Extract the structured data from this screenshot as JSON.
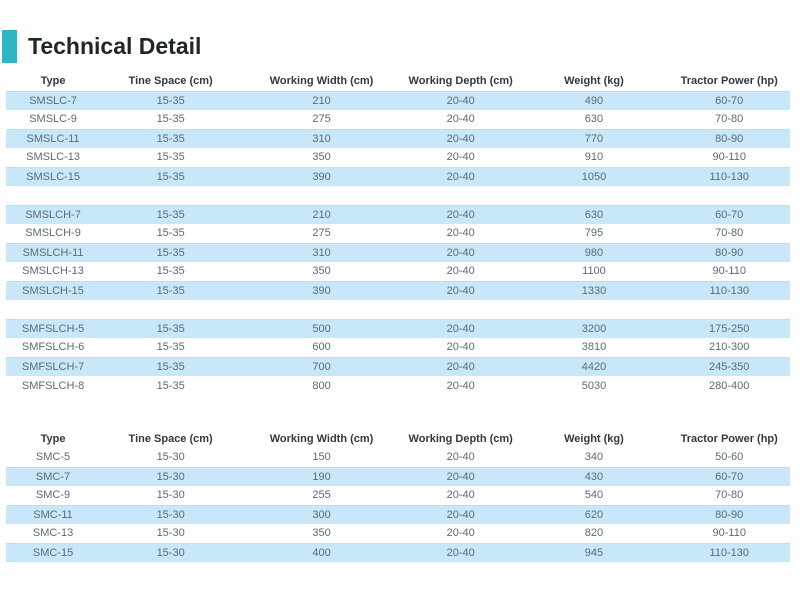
{
  "page": {
    "title": "Technical Detail",
    "accent_color": "#2eb6c5",
    "row_highlight_color": "#c8e7f8"
  },
  "table1": {
    "headers": [
      "Type",
      "Tine Space (cm)",
      "Working Width (cm)",
      "Working Depth (cm)",
      "Weight (kg)",
      "Tractor Power (hp)"
    ],
    "groups": [
      {
        "rows": [
          [
            "SMSLC-7",
            "15-35",
            "210",
            "20-40",
            "490",
            "60-70"
          ],
          [
            "SMSLC-9",
            "15-35",
            "275",
            "20-40",
            "630",
            "70-80"
          ],
          [
            "SMSLC-11",
            "15-35",
            "310",
            "20-40",
            "770",
            "80-90"
          ],
          [
            "SMSLC-13",
            "15-35",
            "350",
            "20-40",
            "910",
            "90-110"
          ],
          [
            "SMSLC-15",
            "15-35",
            "390",
            "20-40",
            "1050",
            "110-130"
          ]
        ]
      },
      {
        "rows": [
          [
            "SMSLCH-7",
            "15-35",
            "210",
            "20-40",
            "630",
            "60-70"
          ],
          [
            "SMSLCH-9",
            "15-35",
            "275",
            "20-40",
            "795",
            "70-80"
          ],
          [
            "SMSLCH-11",
            "15-35",
            "310",
            "20-40",
            "980",
            "80-90"
          ],
          [
            "SMSLCH-13",
            "15-35",
            "350",
            "20-40",
            "1100",
            "90-110"
          ],
          [
            "SMSLCH-15",
            "15-35",
            "390",
            "20-40",
            "1330",
            "110-130"
          ]
        ]
      },
      {
        "rows": [
          [
            "SMFSLCH-5",
            "15-35",
            "500",
            "20-40",
            "3200",
            "175-250"
          ],
          [
            "SMFSLCH-6",
            "15-35",
            "600",
            "20-40",
            "3810",
            "210-300"
          ],
          [
            "SMFSLCH-7",
            "15-35",
            "700",
            "20-40",
            "4420",
            "245-350"
          ],
          [
            "SMFSLCH-8",
            "15-35",
            "800",
            "20-40",
            "5030",
            "280-400"
          ]
        ]
      }
    ]
  },
  "table2": {
    "headers": [
      "Type",
      "Tine Space (cm)",
      "Working Width (cm)",
      "Working Depth (cm)",
      "Weight (kg)",
      "Tractor Power (hp)"
    ],
    "rows": [
      [
        "SMC-5",
        "15-30",
        "150",
        "20-40",
        "340",
        "50-60"
      ],
      [
        "SMC-7",
        "15-30",
        "190",
        "20-40",
        "430",
        "60-70"
      ],
      [
        "SMC-9",
        "15-30",
        "255",
        "20-40",
        "540",
        "70-80"
      ],
      [
        "SMC-11",
        "15-30",
        "300",
        "20-40",
        "620",
        "80-90"
      ],
      [
        "SMC-13",
        "15-30",
        "350",
        "20-40",
        "820",
        "90-110"
      ],
      [
        "SMC-15",
        "15-30",
        "400",
        "20-40",
        "945",
        "110-130"
      ]
    ]
  }
}
